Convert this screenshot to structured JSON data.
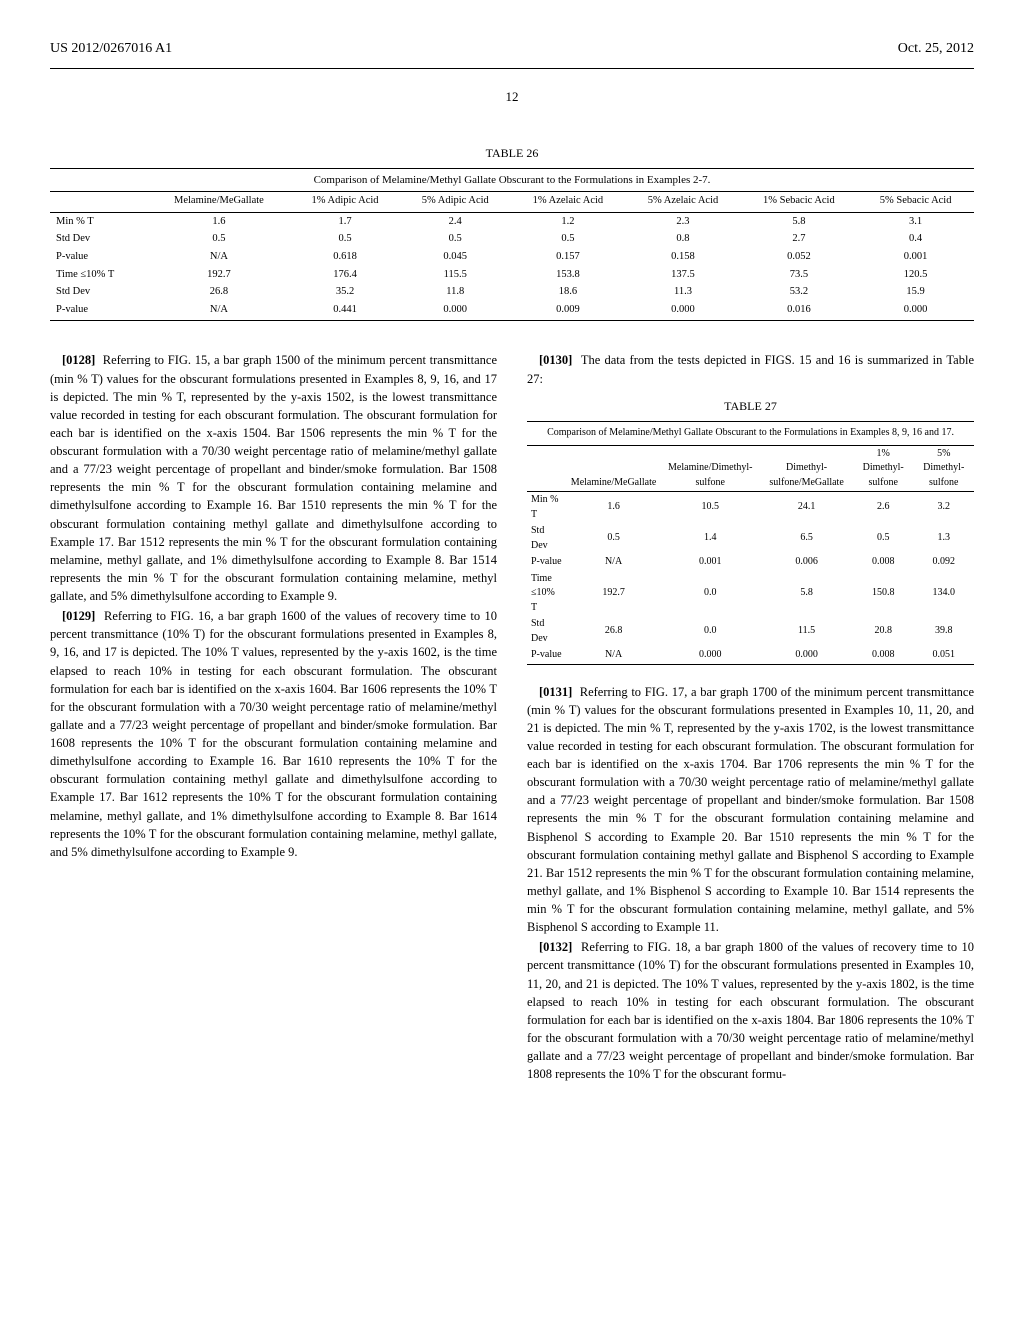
{
  "header": {
    "left": "US 2012/0267016 A1",
    "right": "Oct. 25, 2012"
  },
  "page_number": "12",
  "table26": {
    "caption": "TABLE 26",
    "subcaption": "Comparison of Melamine/Methyl Gallate Obscurant to the Formulations in Examples 2-7.",
    "columns": [
      "",
      "Melamine/MeGallate",
      "1% Adipic Acid",
      "5% Adipic Acid",
      "1% Azelaic Acid",
      "5% Azelaic Acid",
      "1% Sebacic Acid",
      "5% Sebacic Acid"
    ],
    "rows": [
      [
        "Min % T",
        "1.6",
        "1.7",
        "2.4",
        "1.2",
        "2.3",
        "5.8",
        "3.1"
      ],
      [
        "Std Dev",
        "0.5",
        "0.5",
        "0.5",
        "0.5",
        "0.8",
        "2.7",
        "0.4"
      ],
      [
        "P-value",
        "N/A",
        "0.618",
        "0.045",
        "0.157",
        "0.158",
        "0.052",
        "0.001"
      ],
      [
        "Time ≤10% T",
        "192.7",
        "176.4",
        "115.5",
        "153.8",
        "137.5",
        "73.5",
        "120.5"
      ],
      [
        "Std Dev",
        "26.8",
        "35.2",
        "11.8",
        "18.6",
        "11.3",
        "53.2",
        "15.9"
      ],
      [
        "P-value",
        "N/A",
        "0.441",
        "0.000",
        "0.009",
        "0.000",
        "0.016",
        "0.000"
      ]
    ]
  },
  "table27": {
    "caption": "TABLE 27",
    "subcaption": "Comparison of Melamine/Methyl Gallate Obscurant to the Formulations in Examples 8, 9, 16 and 17.",
    "columns": [
      "",
      "Melamine/MeGallate",
      "Melamine/Dimethyl-sulfone",
      "Dimethyl-sulfone/MeGallate",
      "1% Dimethyl-sulfone",
      "5% Dimethyl-sulfone"
    ],
    "rows": [
      [
        "Min % T",
        "1.6",
        "10.5",
        "24.1",
        "2.6",
        "3.2"
      ],
      [
        "Std Dev",
        "0.5",
        "1.4",
        "6.5",
        "0.5",
        "1.3"
      ],
      [
        "P-value",
        "N/A",
        "0.001",
        "0.006",
        "0.008",
        "0.092"
      ],
      [
        "Time ≤10% T",
        "192.7",
        "0.0",
        "5.8",
        "150.8",
        "134.0"
      ],
      [
        "Std Dev",
        "26.8",
        "0.0",
        "11.5",
        "20.8",
        "39.8"
      ],
      [
        "P-value",
        "N/A",
        "0.000",
        "0.000",
        "0.008",
        "0.051"
      ]
    ]
  },
  "paragraphs": {
    "p0128": {
      "num": "[0128]",
      "text": "Referring to FIG. 15, a bar graph 1500 of the minimum percent transmittance (min % T) values for the obscurant formulations presented in Examples 8, 9, 16, and 17 is depicted. The min % T, represented by the y-axis 1502, is the lowest transmittance value recorded in testing for each obscurant formulation. The obscurant formulation for each bar is identified on the x-axis 1504. Bar 1506 represents the min % T for the obscurant formulation with a 70/30 weight percentage ratio of melamine/methyl gallate and a 77/23 weight percentage of propellant and binder/smoke formulation. Bar 1508 represents the min % T for the obscurant formulation containing melamine and dimethylsulfone according to Example 16. Bar 1510 represents the min % T for the obscurant formulation containing methyl gallate and dimethylsulfone according to Example 17. Bar 1512 represents the min % T for the obscurant formulation containing melamine, methyl gallate, and 1% dimethylsulfone according to Example 8. Bar 1514 represents the min % T for the obscurant formulation containing melamine, methyl gallate, and 5% dimethylsulfone according to Example 9."
    },
    "p0129": {
      "num": "[0129]",
      "text": "Referring to FIG. 16, a bar graph 1600 of the values of recovery time to 10 percent transmittance (10% T) for the obscurant formulations presented in Examples 8, 9, 16, and 17 is depicted. The 10% T values, represented by the y-axis 1602, is the time elapsed to reach 10% in testing for each obscurant formulation. The obscurant formulation for each bar is identified on the x-axis 1604. Bar 1606 represents the 10% T for the obscurant formulation with a 70/30 weight percentage ratio of melamine/methyl gallate and a 77/23 weight percentage of propellant and binder/smoke formulation. Bar 1608 represents the 10% T for the obscurant formulation containing melamine and dimethylsulfone according to Example 16. Bar 1610 represents the 10% T for the obscurant formulation containing methyl gallate and dimethylsulfone according to Example 17. Bar 1612 represents the 10% T for the obscurant formulation containing melamine, methyl gallate, and 1% dimethylsulfone according to Example 8. Bar 1614 represents the 10% T for the obscurant formulation containing melamine, methyl gallate, and 5% dimethylsulfone according to Example 9."
    },
    "p0130": {
      "num": "[0130]",
      "text": "The data from the tests depicted in FIGS. 15 and 16 is summarized in Table 27:"
    },
    "p0131": {
      "num": "[0131]",
      "text": "Referring to FIG. 17, a bar graph 1700 of the minimum percent transmittance (min % T) values for the obscurant formulations presented in Examples 10, 11, 20, and 21 is depicted. The min % T, represented by the y-axis 1702, is the lowest transmittance value recorded in testing for each obscurant formulation. The obscurant formulation for each bar is identified on the x-axis 1704. Bar 1706 represents the min % T for the obscurant formulation with a 70/30 weight percentage ratio of melamine/methyl gallate and a 77/23 weight percentage of propellant and binder/smoke formulation. Bar 1508 represents the min % T for the obscurant formulation containing melamine and Bisphenol S according to Example 20. Bar 1510 represents the min % T for the obscurant formulation containing methyl gallate and Bisphenol S according to Example 21. Bar 1512 represents the min % T for the obscurant formulation containing melamine, methyl gallate, and 1% Bisphenol S according to Example 10. Bar 1514 represents the min % T for the obscurant formulation containing melamine, methyl gallate, and 5% Bisphenol S according to Example 11."
    },
    "p0132": {
      "num": "[0132]",
      "text": "Referring to FIG. 18, a bar graph 1800 of the values of recovery time to 10 percent transmittance (10% T) for the obscurant formulations presented in Examples 10, 11, 20, and 21 is depicted. The 10% T values, represented by the y-axis 1802, is the time elapsed to reach 10% in testing for each obscurant formulation. The obscurant formulation for each bar is identified on the x-axis 1804. Bar 1806 represents the 10% T for the obscurant formulation with a 70/30 weight percentage ratio of melamine/methyl gallate and a 77/23 weight percentage of propellant and binder/smoke formulation. Bar 1808 represents the 10% T for the obscurant formu-"
    }
  }
}
